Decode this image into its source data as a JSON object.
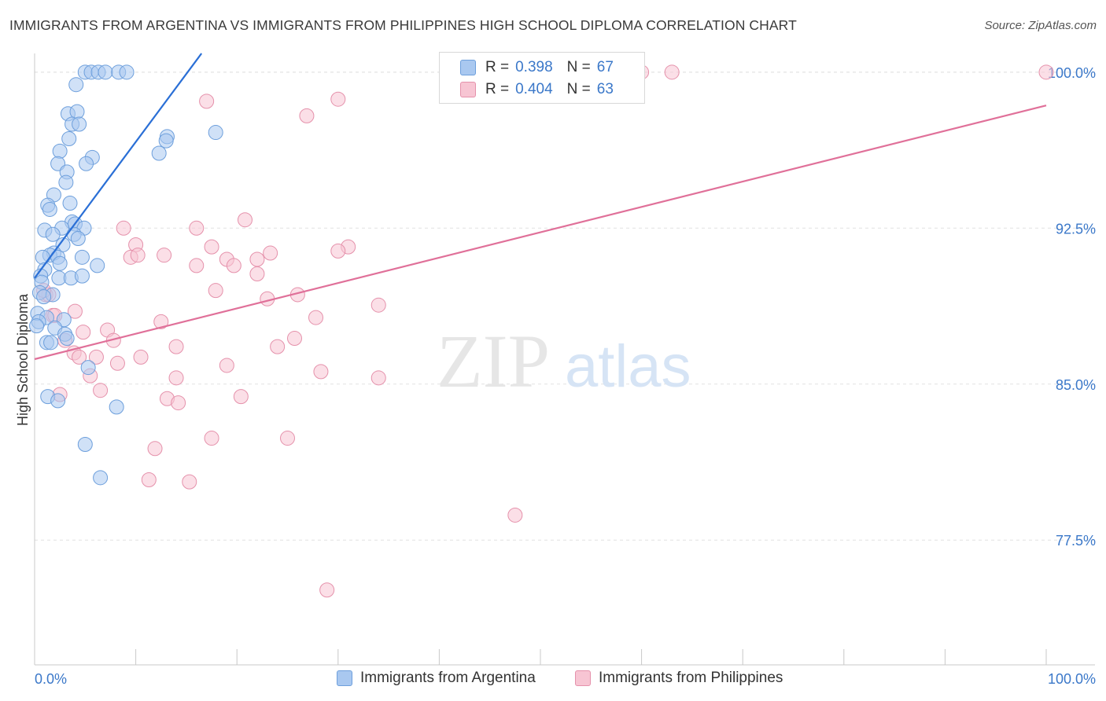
{
  "header": {
    "title": "IMMIGRANTS FROM ARGENTINA VS IMMIGRANTS FROM PHILIPPINES HIGH SCHOOL DIPLOMA CORRELATION CHART",
    "source": "Source: ZipAtlas.com"
  },
  "legend": {
    "rows": [
      {
        "r_label": "R =",
        "r_value": "0.398",
        "n_label": "N =",
        "n_value": "67",
        "color": "#a9c8f0",
        "border": "#6d9fdc"
      },
      {
        "r_label": "R =",
        "r_value": "0.404",
        "n_label": "N =",
        "n_value": "63",
        "color": "#f7c5d3",
        "border": "#e591ab"
      }
    ]
  },
  "bottom_legend": {
    "argentina": "Immigrants from Argentina",
    "philippines": "Immigrants from Philippines"
  },
  "watermark": {
    "zip": "ZIP",
    "atlas": "atlas"
  },
  "colors": {
    "argentina_fill": "#a9c8f0",
    "argentina_stroke": "#6d9fdc",
    "argentina_line": "#2a6fd6",
    "philippines_fill": "#f7c5d3",
    "philippines_stroke": "#e591ab",
    "philippines_line": "#e07099",
    "tick_text": "#3b78c9"
  },
  "chart_data": {
    "type": "scatter",
    "title": "IMMIGRANTS FROM ARGENTINA VS IMMIGRANTS FROM PHILIPPINES HIGH SCHOOL DIPLOMA CORRELATION CHART",
    "xlabel": "",
    "ylabel": "High School Diploma",
    "xlim": [
      0,
      100
    ],
    "ylim": [
      71.5,
      100.9
    ],
    "x_tick_labels": [
      "0.0%",
      "100.0%"
    ],
    "y_ticks": [
      77.5,
      85.0,
      92.5,
      100.0
    ],
    "y_tick_labels": [
      "77.5%",
      "85.0%",
      "92.5%",
      "100.0%"
    ],
    "grid": true,
    "series": [
      {
        "name": "Immigrants from Argentina",
        "R": 0.398,
        "N": 67,
        "trend": {
          "x": [
            0.0,
            16.5
          ],
          "y": [
            90.1,
            100.9
          ]
        },
        "points": [
          [
            5.0,
            100.0
          ],
          [
            5.6,
            100.0
          ],
          [
            6.3,
            100.0
          ],
          [
            7.0,
            100.0
          ],
          [
            8.3,
            100.0
          ],
          [
            9.1,
            100.0
          ],
          [
            4.1,
            99.4
          ],
          [
            3.3,
            98.0
          ],
          [
            4.2,
            98.1
          ],
          [
            3.7,
            97.5
          ],
          [
            4.4,
            97.5
          ],
          [
            17.9,
            97.1
          ],
          [
            3.4,
            96.8
          ],
          [
            13.1,
            96.9
          ],
          [
            13.0,
            96.7
          ],
          [
            2.5,
            96.2
          ],
          [
            12.3,
            96.1
          ],
          [
            5.7,
            95.9
          ],
          [
            2.3,
            95.6
          ],
          [
            5.1,
            95.6
          ],
          [
            3.2,
            95.2
          ],
          [
            3.1,
            94.7
          ],
          [
            1.9,
            94.1
          ],
          [
            3.5,
            93.7
          ],
          [
            1.3,
            93.6
          ],
          [
            1.5,
            93.4
          ],
          [
            3.7,
            92.8
          ],
          [
            4.0,
            92.7
          ],
          [
            1.0,
            92.4
          ],
          [
            2.7,
            92.5
          ],
          [
            4.9,
            92.5
          ],
          [
            1.8,
            92.2
          ],
          [
            3.9,
            92.2
          ],
          [
            4.3,
            92.0
          ],
          [
            2.8,
            91.7
          ],
          [
            1.9,
            91.3
          ],
          [
            1.5,
            91.2
          ],
          [
            0.8,
            91.1
          ],
          [
            2.3,
            91.1
          ],
          [
            4.7,
            91.1
          ],
          [
            2.5,
            90.8
          ],
          [
            6.2,
            90.7
          ],
          [
            1.0,
            90.5
          ],
          [
            0.6,
            90.2
          ],
          [
            2.4,
            90.1
          ],
          [
            3.6,
            90.1
          ],
          [
            4.7,
            90.2
          ],
          [
            0.7,
            89.9
          ],
          [
            0.5,
            89.4
          ],
          [
            1.8,
            89.3
          ],
          [
            0.9,
            89.2
          ],
          [
            0.3,
            88.4
          ],
          [
            1.2,
            88.2
          ],
          [
            2.9,
            88.1
          ],
          [
            0.4,
            88.0
          ],
          [
            0.2,
            87.8
          ],
          [
            2.0,
            87.7
          ],
          [
            3.0,
            87.4
          ],
          [
            3.2,
            87.2
          ],
          [
            1.2,
            87.0
          ],
          [
            1.6,
            87.0
          ],
          [
            5.3,
            85.8
          ],
          [
            1.3,
            84.4
          ],
          [
            2.3,
            84.2
          ],
          [
            8.1,
            83.9
          ],
          [
            5.0,
            82.1
          ],
          [
            6.5,
            80.5
          ]
        ]
      },
      {
        "name": "Immigrants from Philippines",
        "R": 0.404,
        "N": 63,
        "trend": {
          "x": [
            0.0,
            100.0
          ],
          "y": [
            86.2,
            98.4
          ]
        },
        "points": [
          [
            60.0,
            100.0
          ],
          [
            63.0,
            100.0
          ],
          [
            100.0,
            100.0
          ],
          [
            17.0,
            98.6
          ],
          [
            30.0,
            98.7
          ],
          [
            26.9,
            97.9
          ],
          [
            20.8,
            92.9
          ],
          [
            8.8,
            92.5
          ],
          [
            16.0,
            92.5
          ],
          [
            17.5,
            91.6
          ],
          [
            31.0,
            91.6
          ],
          [
            10.0,
            91.7
          ],
          [
            30.0,
            91.4
          ],
          [
            23.3,
            91.3
          ],
          [
            12.8,
            91.2
          ],
          [
            9.5,
            91.1
          ],
          [
            10.2,
            91.2
          ],
          [
            19.0,
            91.0
          ],
          [
            22.0,
            91.0
          ],
          [
            16.0,
            90.7
          ],
          [
            19.7,
            90.7
          ],
          [
            22.0,
            90.3
          ],
          [
            17.9,
            89.5
          ],
          [
            23.0,
            89.1
          ],
          [
            1.1,
            89.3
          ],
          [
            1.4,
            89.3
          ],
          [
            26.0,
            89.3
          ],
          [
            34.0,
            88.8
          ],
          [
            4.0,
            88.5
          ],
          [
            1.8,
            88.3
          ],
          [
            2.0,
            88.3
          ],
          [
            27.8,
            88.2
          ],
          [
            12.5,
            88.0
          ],
          [
            7.2,
            87.6
          ],
          [
            4.8,
            87.5
          ],
          [
            3.0,
            87.1
          ],
          [
            7.8,
            87.1
          ],
          [
            25.7,
            87.2
          ],
          [
            24.0,
            86.8
          ],
          [
            14.0,
            86.8
          ],
          [
            3.9,
            86.5
          ],
          [
            4.4,
            86.3
          ],
          [
            6.1,
            86.3
          ],
          [
            10.5,
            86.3
          ],
          [
            8.2,
            86.0
          ],
          [
            19.0,
            85.9
          ],
          [
            28.3,
            85.6
          ],
          [
            5.5,
            85.4
          ],
          [
            14.0,
            85.3
          ],
          [
            34.0,
            85.3
          ],
          [
            6.5,
            84.7
          ],
          [
            2.5,
            84.5
          ],
          [
            20.4,
            84.4
          ],
          [
            13.1,
            84.3
          ],
          [
            14.2,
            84.1
          ],
          [
            17.5,
            82.4
          ],
          [
            25.0,
            82.4
          ],
          [
            11.9,
            81.9
          ],
          [
            11.3,
            80.4
          ],
          [
            15.3,
            80.3
          ],
          [
            47.5,
            78.7
          ],
          [
            28.9,
            75.1
          ],
          [
            0.9,
            89.5
          ]
        ]
      }
    ]
  }
}
